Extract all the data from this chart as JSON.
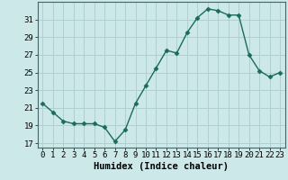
{
  "x": [
    0,
    1,
    2,
    3,
    4,
    5,
    6,
    7,
    8,
    9,
    10,
    11,
    12,
    13,
    14,
    15,
    16,
    17,
    18,
    19,
    20,
    21,
    22,
    23
  ],
  "y": [
    21.5,
    20.5,
    19.5,
    19.2,
    19.2,
    19.2,
    18.8,
    17.2,
    18.5,
    21.5,
    23.5,
    25.5,
    27.5,
    27.2,
    29.5,
    31.2,
    32.2,
    32.0,
    31.5,
    31.5,
    27.0,
    25.2,
    24.5,
    25.0
  ],
  "line_color": "#1a6b5a",
  "marker": "D",
  "markersize": 2.5,
  "linewidth": 1.0,
  "bg_color": "#cce8e8",
  "grid_color": "#b0d0d0",
  "xlabel": "Humidex (Indice chaleur)",
  "xlim": [
    -0.5,
    23.5
  ],
  "ylim": [
    16.5,
    33.0
  ],
  "yticks": [
    17,
    19,
    21,
    23,
    25,
    27,
    29,
    31
  ],
  "xticks": [
    0,
    1,
    2,
    3,
    4,
    5,
    6,
    7,
    8,
    9,
    10,
    11,
    12,
    13,
    14,
    15,
    16,
    17,
    18,
    19,
    20,
    21,
    22,
    23
  ],
  "xlabel_fontsize": 7.5,
  "tick_fontsize": 6.5,
  "spine_color": "#446666"
}
